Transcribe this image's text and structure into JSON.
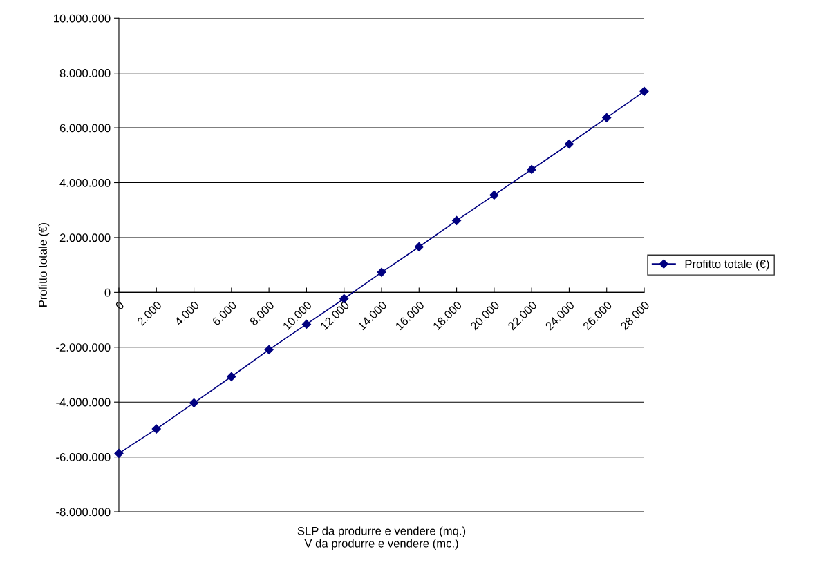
{
  "chart_data": {
    "type": "line",
    "xlabel": "SLP da produrre e vendere (mq.)\nV da produrre e vendere (mc.)",
    "ylabel": "Profitto totale (€)",
    "categories": [
      "0",
      "2.000",
      "4.000",
      "6.000",
      "8.000",
      "10.000",
      "12.000",
      "14.000",
      "16.000",
      "18.000",
      "20.000",
      "22.000",
      "24.000",
      "26.000",
      "28.000"
    ],
    "series": [
      {
        "name": "Profitto totale (€)",
        "color": "#000080",
        "values": [
          -5870000,
          -4980000,
          -4030000,
          -3070000,
          -2090000,
          -1160000,
          -230000,
          730000,
          1660000,
          2620000,
          3550000,
          4480000,
          5410000,
          6370000,
          7330000
        ]
      }
    ],
    "ylim": [
      -8000000,
      10000000
    ],
    "yticks": [
      {
        "value": -8000000,
        "label": "-8.000.000"
      },
      {
        "value": -6000000,
        "label": "-6.000.000"
      },
      {
        "value": -4000000,
        "label": "-4.000.000"
      },
      {
        "value": -2000000,
        "label": "-2.000.000"
      },
      {
        "value": 0,
        "label": "0"
      },
      {
        "value": 2000000,
        "label": "2.000.000"
      },
      {
        "value": 4000000,
        "label": "4.000.000"
      },
      {
        "value": 6000000,
        "label": "6.000.000"
      },
      {
        "value": 8000000,
        "label": "8.000.000"
      },
      {
        "value": 10000000,
        "label": "10.000.000"
      }
    ],
    "grid": "y",
    "legend": "right",
    "marker": "diamond",
    "line_style": "solid"
  }
}
